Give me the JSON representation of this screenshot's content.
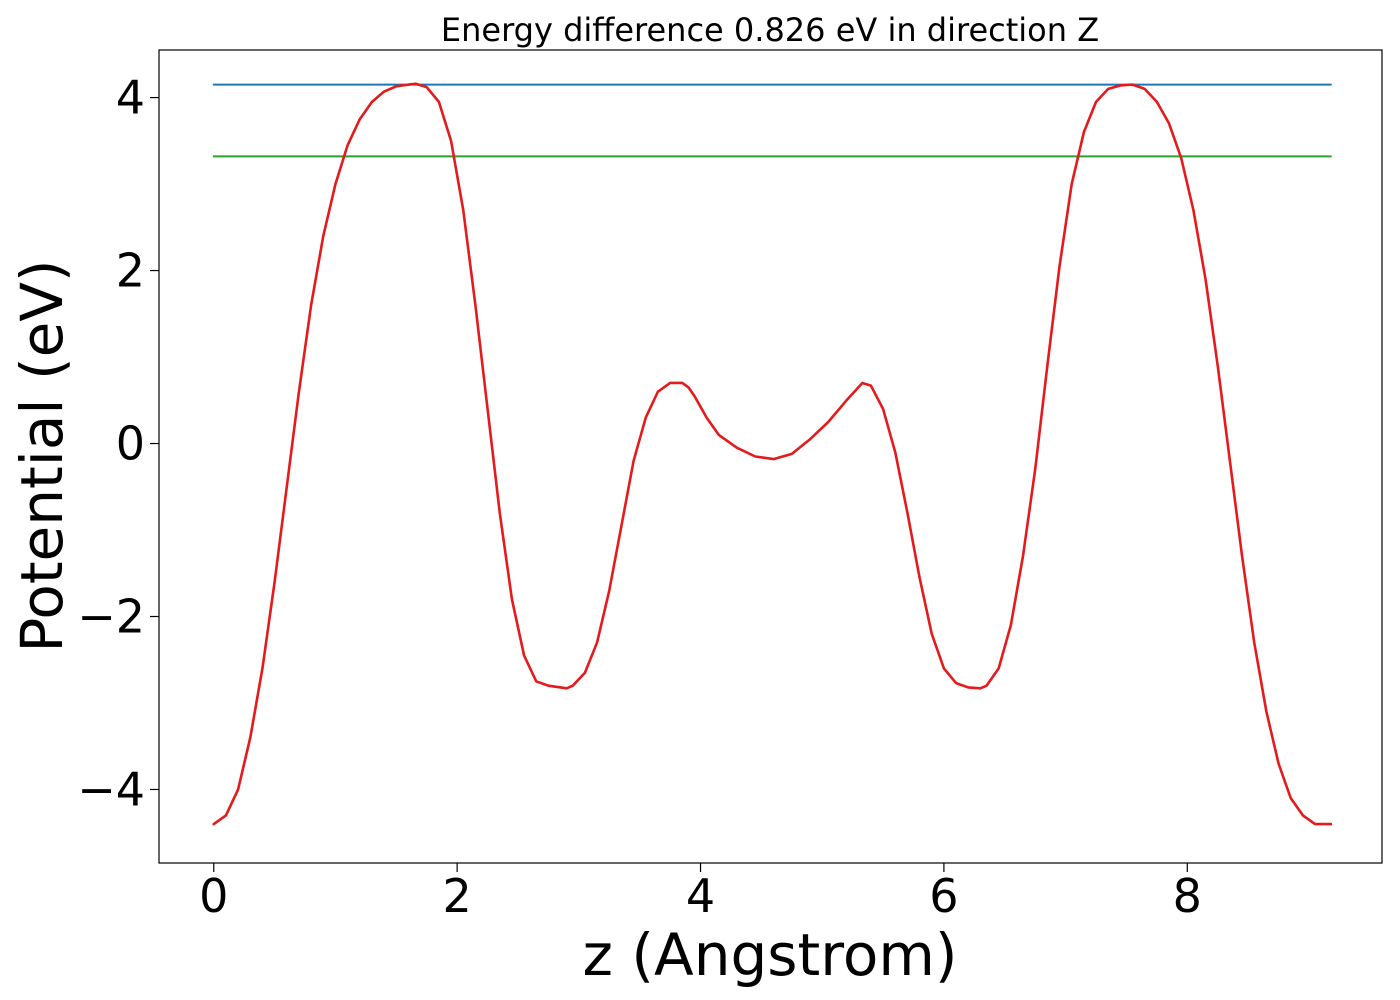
{
  "chart_data": {
    "type": "line",
    "title": "Energy difference 0.826 eV in direction Z",
    "xlabel": "z (Angstrom)",
    "ylabel": "Potential (eV)",
    "xlim": [
      -0.45,
      9.6
    ],
    "ylim": [
      -4.85,
      4.55
    ],
    "xticks": [
      0,
      2,
      4,
      6,
      8
    ],
    "xtick_labels": [
      "0",
      "2",
      "4",
      "6",
      "8"
    ],
    "yticks": [
      -4,
      -2,
      0,
      2,
      4
    ],
    "ytick_labels": [
      "−4",
      "−2",
      "0",
      "2",
      "4"
    ],
    "grid": false,
    "legend": "none",
    "series": [
      {
        "color": "#1f77b4",
        "x": [
          0,
          9.18
        ],
        "y": [
          4.15,
          4.15
        ]
      },
      {
        "color": "#2ca02c",
        "x": [
          0,
          9.18
        ],
        "y": [
          3.32,
          3.32
        ]
      },
      {
        "color": "#e41a1c",
        "x": [
          0,
          0.1,
          0.2,
          0.3,
          0.4,
          0.5,
          0.6,
          0.7,
          0.8,
          0.9,
          1.0,
          1.1,
          1.2,
          1.3,
          1.4,
          1.5,
          1.6,
          1.66,
          1.75,
          1.85,
          1.95,
          2.05,
          2.15,
          2.25,
          2.35,
          2.45,
          2.55,
          2.65,
          2.75,
          2.85,
          2.9,
          2.95,
          3.05,
          3.15,
          3.25,
          3.35,
          3.45,
          3.55,
          3.65,
          3.75,
          3.85,
          3.9,
          3.95,
          4.05,
          4.15,
          4.3,
          4.45,
          4.6,
          4.75,
          4.9,
          5.05,
          5.2,
          5.33,
          5.4,
          5.5,
          5.6,
          5.7,
          5.8,
          5.9,
          6.0,
          6.1,
          6.2,
          6.3,
          6.35,
          6.45,
          6.55,
          6.65,
          6.75,
          6.85,
          6.95,
          7.05,
          7.15,
          7.25,
          7.35,
          7.45,
          7.55,
          7.65,
          7.75,
          7.85,
          7.95,
          8.05,
          8.15,
          8.25,
          8.35,
          8.45,
          8.55,
          8.65,
          8.75,
          8.85,
          8.95,
          9.05,
          9.18
        ],
        "y": [
          -4.4,
          -4.3,
          -4.0,
          -3.4,
          -2.6,
          -1.6,
          -0.5,
          0.6,
          1.6,
          2.4,
          3.0,
          3.45,
          3.75,
          3.95,
          4.07,
          4.13,
          4.15,
          4.16,
          4.12,
          3.95,
          3.5,
          2.7,
          1.6,
          0.4,
          -0.8,
          -1.8,
          -2.45,
          -2.75,
          -2.8,
          -2.82,
          -2.83,
          -2.8,
          -2.65,
          -2.3,
          -1.7,
          -0.95,
          -0.2,
          0.3,
          0.6,
          0.7,
          0.7,
          0.65,
          0.55,
          0.3,
          0.1,
          -0.05,
          -0.15,
          -0.18,
          -0.12,
          0.05,
          0.25,
          0.5,
          0.7,
          0.67,
          0.4,
          -0.1,
          -0.8,
          -1.55,
          -2.2,
          -2.6,
          -2.77,
          -2.82,
          -2.83,
          -2.8,
          -2.6,
          -2.1,
          -1.3,
          -0.3,
          0.9,
          2.05,
          3.0,
          3.6,
          3.95,
          4.1,
          4.14,
          4.15,
          4.1,
          3.95,
          3.7,
          3.3,
          2.7,
          1.9,
          0.9,
          -0.2,
          -1.3,
          -2.3,
          -3.1,
          -3.7,
          -4.1,
          -4.3,
          -4.4,
          -4.4
        ]
      }
    ]
  }
}
